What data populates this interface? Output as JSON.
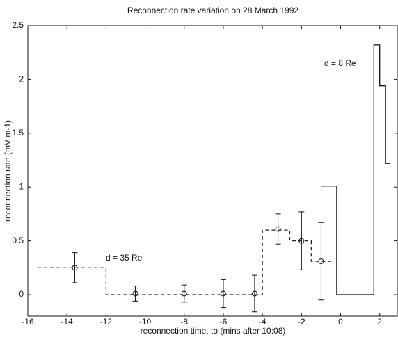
{
  "chart_data": {
    "type": "line",
    "title": "Reconnection rate variation on 28 March 1992",
    "xlabel": "reconnection time, to (mins after 10:08)",
    "ylabel": "reconnection rate (mV m-1)",
    "xlim": [
      -16,
      2.9
    ],
    "ylim": [
      -0.2,
      2.5
    ],
    "xticks": [
      -16,
      -14,
      -12,
      -10,
      -8,
      -6,
      -4,
      -2,
      0,
      2
    ],
    "yticks": [
      0,
      0.5,
      1,
      1.5,
      2,
      2.5
    ],
    "series": [
      {
        "color": "#222",
        "style": "dashed",
        "x": [
          -15.5,
          -12,
          -12,
          -4,
          -4,
          -2.6,
          -2.6,
          -1.5,
          -1.5,
          -0.5
        ],
        "values": [
          0.25,
          0.25,
          0,
          0,
          0.6,
          0.6,
          0.5,
          0.5,
          0.31,
          0.31
        ]
      },
      {
        "color": "#111",
        "style": "solid",
        "x": [
          -1,
          -0.2,
          -0.2,
          1.7,
          1.7,
          2.0,
          2.0,
          2.3,
          2.3,
          2.55
        ],
        "values": [
          1.01,
          1.01,
          0,
          0,
          2.32,
          2.32,
          1.94,
          1.94,
          1.22,
          1.22
        ]
      },
      {
        "color": "#111",
        "style": "points",
        "x": [
          -13.6,
          -10.5,
          -8,
          -6,
          -4.4,
          -3.2,
          -2,
          -1
        ],
        "values": [
          0.25,
          0.01,
          0.01,
          0.01,
          0.01,
          0.61,
          0.5,
          0.31
        ],
        "errors": [
          0.14,
          0.07,
          0.08,
          0.13,
          0.17,
          0.14,
          0.27,
          0.36
        ]
      }
    ],
    "annotations": [
      {
        "text": "d = 35 Re"
      },
      {
        "text": "d = 8 Re"
      }
    ]
  }
}
